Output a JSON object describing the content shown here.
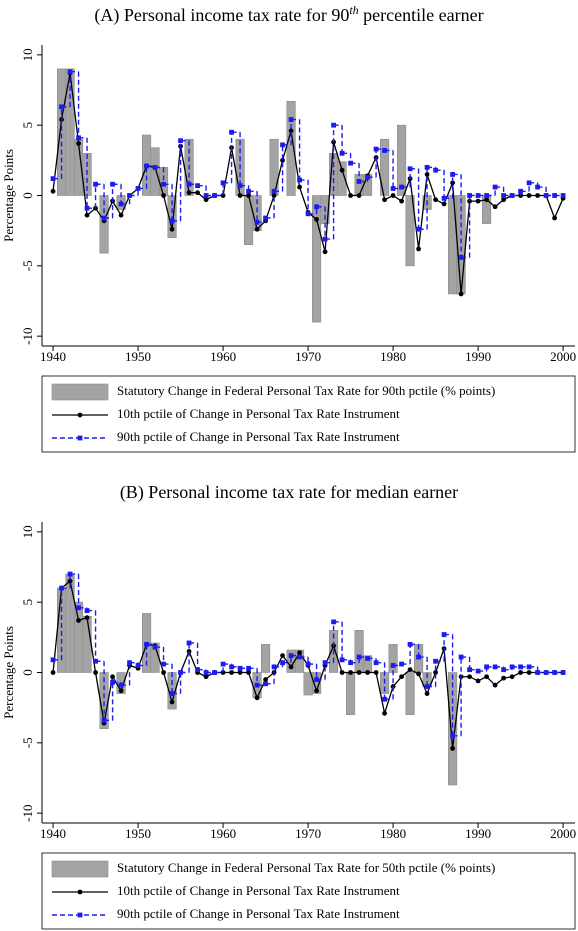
{
  "chart_data": [
    {
      "type": "bar_line",
      "title": "(A)  Personal income tax rate for 90",
      "title_sup": "th",
      "title_end": " percentile earner",
      "ylabel": "Percentage Points",
      "xlim": [
        1938.7,
        2001.4
      ],
      "xticks": [
        1940,
        1950,
        1960,
        1970,
        1980,
        1990,
        2000
      ],
      "ylim": [
        -10.7,
        10.7
      ],
      "yticks": [
        -10,
        -5,
        0,
        5,
        10
      ],
      "legend": "bottom",
      "x": [
        1940,
        1941,
        1942,
        1943,
        1944,
        1945,
        1946,
        1947,
        1948,
        1949,
        1950,
        1951,
        1952,
        1953,
        1954,
        1955,
        1956,
        1957,
        1958,
        1959,
        1960,
        1961,
        1962,
        1963,
        1964,
        1965,
        1966,
        1967,
        1968,
        1969,
        1970,
        1971,
        1972,
        1973,
        1974,
        1975,
        1976,
        1977,
        1978,
        1979,
        1980,
        1981,
        1982,
        1983,
        1984,
        1985,
        1986,
        1987,
        1988,
        1989,
        1990,
        1991,
        1992,
        1993,
        1994,
        1995,
        1996,
        1997,
        1998,
        1999,
        2000
      ],
      "series": [
        {
          "name": "Statutory Change in Federal Personal Tax Rate for 90th pctile (% points)",
          "kind": "bar",
          "color": "#a3a3a3",
          "values": [
            0,
            9,
            9,
            4,
            3,
            0,
            -4.1,
            0,
            -1,
            0,
            0,
            4.3,
            3.4,
            2,
            -3,
            0,
            4,
            0,
            0,
            0,
            0,
            0,
            4,
            -3.5,
            -2.5,
            0,
            4,
            0,
            6.7,
            0,
            0,
            -9,
            -2,
            3,
            2.4,
            0,
            1.5,
            1.5,
            0,
            4,
            0,
            5,
            -5,
            0,
            -1,
            0,
            0,
            -7,
            -7,
            0,
            0,
            -2,
            0,
            0,
            0,
            0,
            0,
            0,
            0,
            0,
            0
          ]
        },
        {
          "name": "10th pctile of Change in Personal Tax Rate Instrument",
          "kind": "line",
          "color": "#000000",
          "values": [
            0.3,
            5.4,
            8.7,
            3.7,
            -1.4,
            -0.9,
            -1.8,
            -0.4,
            -1.4,
            0,
            0.5,
            2.1,
            2,
            0,
            -2.4,
            3.5,
            0.2,
            0.2,
            -0.3,
            0,
            0,
            3.4,
            0,
            0,
            -2.4,
            -1.8,
            0,
            2.5,
            4.6,
            0.6,
            -1.2,
            -1.7,
            -4,
            3.8,
            1.8,
            0,
            0,
            1.4,
            2.7,
            -0.3,
            0,
            -0.4,
            1.2,
            -3.8,
            1.5,
            -0.3,
            -0.6,
            0.9,
            -7,
            -0.4,
            -0.4,
            -0.3,
            -0.8,
            -0.3,
            0,
            0,
            0,
            0,
            0,
            -1.6,
            -0.2
          ]
        },
        {
          "name": "90th pctile of Change in Personal Tax Rate Instrument",
          "kind": "step",
          "color": "#1c1cf0",
          "values": [
            1.2,
            6.3,
            8.8,
            4.1,
            -0.9,
            0.8,
            -1.6,
            0.8,
            -0.6,
            0,
            0.5,
            2.1,
            2,
            0.8,
            -1.8,
            3.9,
            0.8,
            0.7,
            0,
            0,
            0.9,
            4.5,
            0.7,
            0.3,
            -1.9,
            -1.6,
            0.3,
            3.6,
            5.4,
            1.1,
            -1.3,
            -0.8,
            -3.1,
            5,
            3,
            2.3,
            1,
            1.3,
            3.3,
            3.2,
            0.5,
            0.6,
            1.9,
            -2.4,
            2,
            1.8,
            -0.2,
            1.5,
            -4.4,
            0,
            0,
            0,
            0.6,
            0,
            0,
            0.3,
            0.9,
            0.6,
            0,
            0,
            0
          ]
        }
      ]
    },
    {
      "type": "bar_line",
      "title": "(B) Personal income tax rate for median earner",
      "ylabel": "Percentage Points",
      "xlim": [
        1938.7,
        2001.4
      ],
      "xticks": [
        1940,
        1950,
        1960,
        1970,
        1980,
        1990,
        2000
      ],
      "ylim": [
        -10.7,
        10.7
      ],
      "yticks": [
        -10,
        -5,
        0,
        5,
        10
      ],
      "legend": "bottom",
      "x": [
        1940,
        1941,
        1942,
        1943,
        1944,
        1945,
        1946,
        1947,
        1948,
        1949,
        1950,
        1951,
        1952,
        1953,
        1954,
        1955,
        1956,
        1957,
        1958,
        1959,
        1960,
        1961,
        1962,
        1963,
        1964,
        1965,
        1966,
        1967,
        1968,
        1969,
        1970,
        1971,
        1972,
        1973,
        1974,
        1975,
        1976,
        1977,
        1978,
        1979,
        1980,
        1981,
        1982,
        1983,
        1984,
        1985,
        1986,
        1987,
        1988,
        1989,
        1990,
        1991,
        1992,
        1993,
        1994,
        1995,
        1996,
        1997,
        1998,
        1999,
        2000
      ],
      "series": [
        {
          "name": "Statutory Change in Federal Personal Tax Rate for 50th pctile (% points)",
          "kind": "bar",
          "color": "#a3a3a3",
          "values": [
            0,
            6,
            7,
            5,
            4,
            0,
            -4,
            0,
            -1.5,
            0,
            0,
            4.2,
            2.1,
            0,
            -2.6,
            0,
            0,
            0,
            0,
            0,
            0,
            0,
            0,
            0,
            -1.8,
            2,
            0,
            0,
            1.6,
            1.6,
            -1.6,
            -1.5,
            0,
            3,
            0,
            -3,
            3,
            1.2,
            0,
            -1.5,
            2,
            0,
            -3,
            2,
            -1,
            0,
            0,
            -8,
            0,
            0,
            0,
            0,
            0,
            0,
            0,
            0,
            0,
            0,
            0,
            0,
            0
          ]
        },
        {
          "name": "10th pctile of Change in Personal Tax Rate Instrument",
          "kind": "line",
          "color": "#000000",
          "values": [
            0,
            6,
            6.5,
            3.7,
            3.9,
            0,
            -3.6,
            -0.3,
            -1.3,
            0.5,
            0.3,
            2,
            1.9,
            0,
            -2.1,
            0,
            1.5,
            0,
            -0.3,
            0,
            0,
            0,
            0,
            0,
            -1.8,
            -0.5,
            0,
            1.2,
            0.4,
            1.4,
            0.5,
            -1.3,
            0.5,
            1.9,
            0,
            0,
            0,
            0,
            0,
            -2.9,
            -1,
            -0.3,
            0.2,
            -0.1,
            -1.5,
            0,
            1.7,
            -5.4,
            -0.3,
            -0.3,
            -0.6,
            -0.3,
            -0.9,
            -0.4,
            -0.3,
            0,
            0,
            0,
            0,
            0,
            0
          ]
        },
        {
          "name": "90th pctile of Change in Personal Tax Rate Instrument",
          "kind": "step",
          "color": "#1c1cf0",
          "values": [
            0.9,
            6,
            7,
            4.6,
            4.4,
            0.8,
            -3.4,
            -0.7,
            -0.9,
            0.7,
            0.5,
            2,
            1.8,
            0.6,
            -1.5,
            0,
            2.1,
            0.2,
            0,
            0,
            0.6,
            0.4,
            0.3,
            0.3,
            -0.9,
            -0.8,
            0.4,
            0.7,
            1.2,
            1.1,
            0.6,
            -0.5,
            0.7,
            3.6,
            0.9,
            0.7,
            1.1,
            1,
            0.7,
            -1.9,
            0.5,
            0.6,
            2,
            1.1,
            -1,
            0.8,
            2.7,
            -4.5,
            1.1,
            0.2,
            0.1,
            0.4,
            0.4,
            0.2,
            0.4,
            0.4,
            0.4,
            0,
            0,
            0,
            0
          ]
        }
      ]
    }
  ]
}
